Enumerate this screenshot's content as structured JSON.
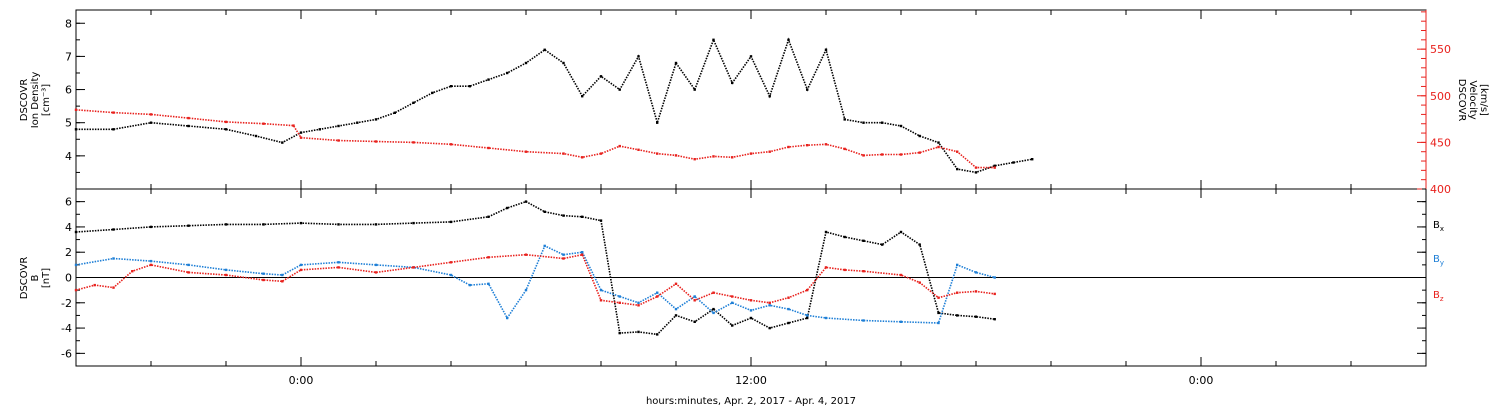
{
  "xaxis": {
    "title": "hours:minutes, Apr.  2, 2017 - Apr.  4, 2017",
    "range_hours": [
      -6,
      30
    ],
    "major_ticks": [
      {
        "hour": 0,
        "label": "0:00"
      },
      {
        "hour": 12,
        "label": "12:00"
      },
      {
        "hour": 24,
        "label": "0:00"
      }
    ]
  },
  "colors": {
    "black": "#000000",
    "red": "#e8211d",
    "blue": "#1e7fd6"
  },
  "chart_data": [
    {
      "type": "scatter",
      "panel": "top",
      "ylabel_left": [
        "DSCOVR",
        "Ion Density",
        "[cm⁻³]"
      ],
      "ylabel_right": [
        "DSCOVR",
        "Velocity",
        "[km/s]"
      ],
      "ylim_left": [
        3.0,
        8.4
      ],
      "yticks_left": [
        "4",
        "5",
        "6",
        "7",
        "8"
      ],
      "ylim_right": [
        400,
        592
      ],
      "yticks_right": [
        "400",
        "450",
        "500",
        "550"
      ],
      "series": [
        {
          "name": "",
          "axis": "left",
          "color": "#000000",
          "x": [
            -6.0,
            -5.0,
            -4.0,
            -3.0,
            -2.0,
            -1.2,
            -0.5,
            0.0,
            0.5,
            1.0,
            1.5,
            2.0,
            2.5,
            3.0,
            3.5,
            4.0,
            4.5,
            5.0,
            5.5,
            6.0,
            6.5,
            7.0,
            7.5,
            8.0,
            8.5,
            9.0,
            9.5,
            10.0,
            10.5,
            11.0,
            11.5,
            12.0,
            12.5,
            13.0,
            13.5,
            14.0,
            14.5,
            15.0,
            15.5,
            16.0,
            16.5,
            17.0,
            17.5,
            18.0,
            18.5,
            19.0,
            19.5
          ],
          "y": [
            4.8,
            4.8,
            5.0,
            4.9,
            4.8,
            4.6,
            4.4,
            4.7,
            4.8,
            4.9,
            5.0,
            5.1,
            5.3,
            5.6,
            5.9,
            6.1,
            6.1,
            6.3,
            6.5,
            6.8,
            7.2,
            6.8,
            5.8,
            6.4,
            6.0,
            7.0,
            5.0,
            6.8,
            6.0,
            7.5,
            6.2,
            7.0,
            5.8,
            7.5,
            6.0,
            7.2,
            5.1,
            5.0,
            5.0,
            4.9,
            4.6,
            4.4,
            3.6,
            3.5,
            3.7,
            3.8,
            3.9
          ]
        },
        {
          "name": "",
          "axis": "right",
          "color": "#e8211d",
          "x": [
            -6.0,
            -5.0,
            -4.0,
            -3.0,
            -2.0,
            -1.0,
            -0.2,
            0.0,
            1.0,
            2.0,
            3.0,
            4.0,
            5.0,
            6.0,
            7.0,
            7.5,
            8.0,
            8.5,
            9.0,
            9.5,
            10.0,
            10.5,
            11.0,
            11.5,
            12.0,
            12.5,
            13.0,
            13.5,
            14.0,
            14.5,
            15.0,
            15.5,
            16.0,
            16.5,
            17.0,
            17.5,
            18.0,
            18.5
          ],
          "y": [
            485,
            482,
            480,
            476,
            472,
            470,
            468,
            455,
            452,
            451,
            450,
            448,
            444,
            440,
            438,
            434,
            438,
            446,
            442,
            438,
            436,
            432,
            435,
            434,
            438,
            440,
            445,
            447,
            448,
            443,
            436,
            437,
            437,
            439,
            445,
            440,
            423,
            423
          ]
        }
      ]
    },
    {
      "type": "scatter",
      "panel": "bottom",
      "ylabel_left": [
        "DSCOVR",
        "B",
        "[nT]"
      ],
      "ylim": [
        -7.0,
        7.0
      ],
      "yticks": [
        "-6",
        "-4",
        "-2",
        "0",
        "2",
        "4",
        "6"
      ],
      "legend": [
        {
          "label": "B",
          "sub": "x",
          "color": "#000000"
        },
        {
          "label": "B",
          "sub": "y",
          "color": "#1e7fd6"
        },
        {
          "label": "B",
          "sub": "z",
          "color": "#e8211d"
        }
      ],
      "series": [
        {
          "name": "Bx",
          "color": "#000000",
          "x": [
            -6.0,
            -5.0,
            -4.0,
            -3.0,
            -2.0,
            -1.0,
            0.0,
            1.0,
            2.0,
            3.0,
            4.0,
            5.0,
            5.5,
            6.0,
            6.5,
            7.0,
            7.5,
            8.0,
            8.5,
            9.0,
            9.5,
            10.0,
            10.5,
            11.0,
            11.5,
            12.0,
            12.5,
            13.0,
            13.5,
            14.0,
            14.5,
            15.0,
            15.5,
            16.0,
            16.5,
            17.0,
            17.5,
            18.0,
            18.5
          ],
          "y": [
            3.6,
            3.8,
            4.0,
            4.1,
            4.2,
            4.2,
            4.3,
            4.2,
            4.2,
            4.3,
            4.4,
            4.8,
            5.5,
            6.0,
            5.2,
            4.9,
            4.8,
            4.5,
            -4.4,
            -4.3,
            -4.5,
            -3.0,
            -3.5,
            -2.5,
            -3.8,
            -3.2,
            -4.0,
            -3.6,
            -3.2,
            3.6,
            3.2,
            2.9,
            2.6,
            3.6,
            2.6,
            -2.8,
            -3.0,
            -3.1,
            -3.3
          ]
        },
        {
          "name": "By",
          "color": "#1e7fd6",
          "x": [
            -6.0,
            -5.0,
            -4.0,
            -3.0,
            -2.0,
            -1.0,
            -0.5,
            0.0,
            1.0,
            2.0,
            3.0,
            4.0,
            4.5,
            5.0,
            5.5,
            6.0,
            6.5,
            7.0,
            7.5,
            8.0,
            8.5,
            9.0,
            9.5,
            10.0,
            10.5,
            11.0,
            11.5,
            12.0,
            12.5,
            13.0,
            13.5,
            14.0,
            15.0,
            16.0,
            17.0,
            17.5,
            18.0,
            18.5
          ],
          "y": [
            1.0,
            1.5,
            1.3,
            1.0,
            0.6,
            0.3,
            0.2,
            1.0,
            1.2,
            1.0,
            0.8,
            0.2,
            -0.6,
            -0.5,
            -3.2,
            -1.0,
            2.5,
            1.8,
            2.0,
            -1.0,
            -1.5,
            -2.0,
            -1.2,
            -2.5,
            -1.5,
            -2.8,
            -2.0,
            -2.6,
            -2.2,
            -2.5,
            -3.0,
            -3.2,
            -3.4,
            -3.5,
            -3.6,
            1.0,
            0.4,
            0.0
          ]
        },
        {
          "name": "Bz",
          "color": "#e8211d",
          "x": [
            -6.0,
            -5.5,
            -5.0,
            -4.5,
            -4.0,
            -3.0,
            -2.0,
            -1.0,
            -0.5,
            0.0,
            1.0,
            2.0,
            3.0,
            4.0,
            5.0,
            6.0,
            7.0,
            7.5,
            8.0,
            8.5,
            9.0,
            9.5,
            10.0,
            10.5,
            11.0,
            11.5,
            12.0,
            12.5,
            13.0,
            13.5,
            14.0,
            14.5,
            15.0,
            16.0,
            16.5,
            17.0,
            17.5,
            18.0,
            18.5
          ],
          "y": [
            -1.0,
            -0.6,
            -0.8,
            0.5,
            1.0,
            0.4,
            0.2,
            -0.2,
            -0.3,
            0.6,
            0.8,
            0.4,
            0.8,
            1.2,
            1.6,
            1.8,
            1.5,
            1.8,
            -1.8,
            -2.0,
            -2.2,
            -1.5,
            -0.5,
            -1.8,
            -1.2,
            -1.5,
            -1.8,
            -2.0,
            -1.6,
            -1.0,
            0.8,
            0.6,
            0.5,
            0.2,
            -0.4,
            -1.6,
            -1.2,
            -1.1,
            -1.3
          ]
        }
      ]
    }
  ]
}
